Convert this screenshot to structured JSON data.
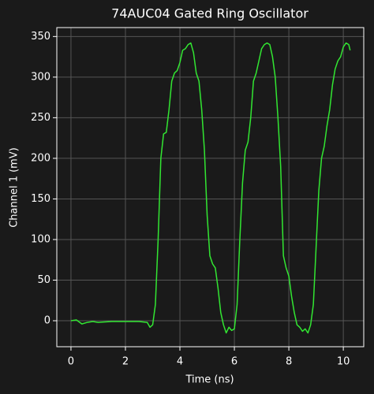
{
  "chart_data": {
    "type": "line",
    "title": "74AUC04 Gated Ring Oscillator",
    "x_label": "Time (ns)",
    "y_label": "Channel 1 (mV)",
    "x": [
      0,
      0.2,
      0.4,
      0.6,
      0.8,
      1.0,
      1.5,
      2.0,
      2.5,
      2.8,
      2.9,
      3.0,
      3.1,
      3.2,
      3.3,
      3.4,
      3.5,
      3.6,
      3.7,
      3.8,
      3.9,
      4.0,
      4.1,
      4.2,
      4.3,
      4.4,
      4.5,
      4.6,
      4.7,
      4.8,
      4.9,
      5.0,
      5.1,
      5.2,
      5.3,
      5.4,
      5.5,
      5.6,
      5.7,
      5.8,
      5.9,
      6.0,
      6.1,
      6.2,
      6.3,
      6.4,
      6.5,
      6.6,
      6.7,
      6.8,
      6.9,
      7.0,
      7.1,
      7.2,
      7.3,
      7.4,
      7.5,
      7.6,
      7.7,
      7.8,
      7.9,
      8.0,
      8.1,
      8.2,
      8.3,
      8.4,
      8.5,
      8.6,
      8.7,
      8.8,
      8.9,
      9.0,
      9.1,
      9.2,
      9.3,
      9.4,
      9.5,
      9.6,
      9.7,
      9.8,
      9.9,
      10.0,
      10.1,
      10.2,
      10.25
    ],
    "series": [
      {
        "name": "Channel 1",
        "color": "#32e632",
        "values": [
          0,
          1,
          -4,
          -2,
          -1,
          -2,
          -1,
          -1,
          -1,
          -2,
          -8,
          -5,
          20,
          100,
          200,
          230,
          232,
          260,
          295,
          305,
          308,
          318,
          333,
          335,
          340,
          342,
          330,
          305,
          295,
          260,
          210,
          130,
          80,
          70,
          65,
          40,
          10,
          -5,
          -15,
          -8,
          -12,
          -10,
          20,
          100,
          170,
          210,
          220,
          250,
          295,
          305,
          320,
          335,
          340,
          342,
          340,
          325,
          300,
          250,
          190,
          80,
          65,
          55,
          30,
          10,
          -5,
          -8,
          -13,
          -10,
          -15,
          -5,
          20,
          90,
          160,
          200,
          215,
          240,
          260,
          290,
          310,
          320,
          325,
          337,
          342,
          340,
          333
        ]
      }
    ],
    "xlim": [
      -0.52,
      10.75
    ],
    "ylim": [
      -32,
      361
    ],
    "xticks": [
      0,
      2,
      4,
      6,
      8,
      10
    ],
    "yticks": [
      0,
      50,
      100,
      150,
      200,
      250,
      300,
      350
    ],
    "grid": true
  }
}
